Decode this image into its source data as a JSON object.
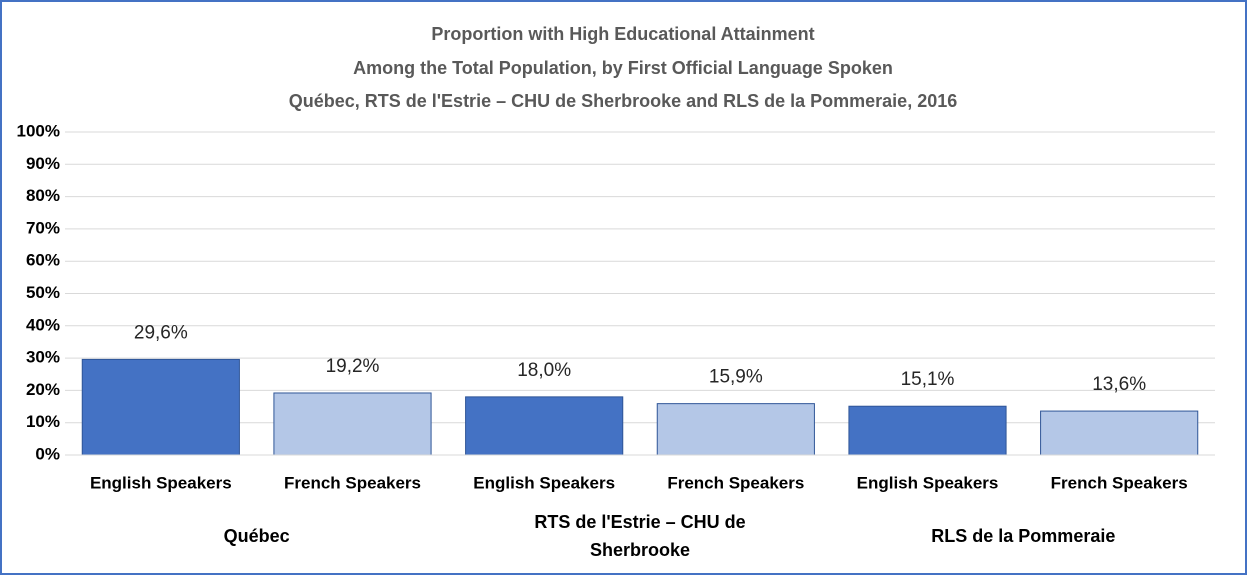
{
  "chart_data": {
    "type": "bar",
    "title": [
      "Proportion with High Educational Attainment",
      "Among the Total Population, by First Official Language Spoken",
      "Québec, RTS de l'Estrie – CHU de Sherbrooke and RLS de la Pommeraie, 2016"
    ],
    "categories": [
      "Québec",
      "RTS de l'Estrie – CHU de Sherbrooke",
      "RLS de la Pommeraie"
    ],
    "series": [
      {
        "name": "English Speakers",
        "color": "#4472c4",
        "values": [
          29.6,
          18.0,
          15.1
        ],
        "value_labels": [
          "29,6%",
          "18,0%",
          "15,1%"
        ]
      },
      {
        "name": "French Speakers",
        "color": "#b4c7e7",
        "values": [
          19.2,
          15.9,
          13.6
        ],
        "value_labels": [
          "19,2%",
          "15,9%",
          "13,6%"
        ]
      }
    ],
    "ylim": [
      0,
      100
    ],
    "yticks": [
      {
        "value": 0,
        "label": "0%"
      },
      {
        "value": 10,
        "label": "10%"
      },
      {
        "value": 20,
        "label": "20%"
      },
      {
        "value": 30,
        "label": "30%"
      },
      {
        "value": 40,
        "label": "40%"
      },
      {
        "value": 50,
        "label": "50%"
      },
      {
        "value": 60,
        "label": "60%"
      },
      {
        "value": 70,
        "label": "70%"
      },
      {
        "value": 80,
        "label": "80%"
      },
      {
        "value": 90,
        "label": "90%"
      },
      {
        "value": 100,
        "label": "100%"
      }
    ],
    "grid": true
  }
}
